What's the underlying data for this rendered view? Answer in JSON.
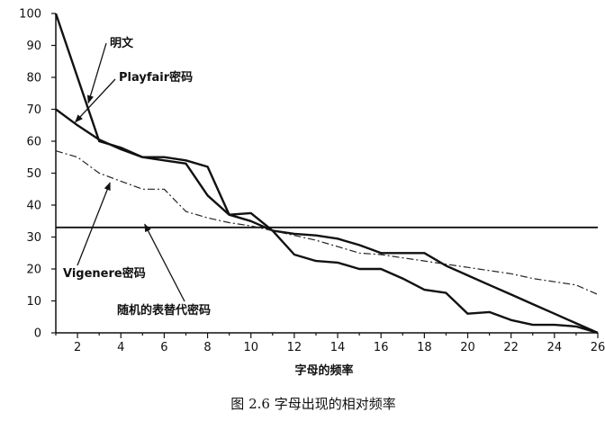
{
  "chart_data": {
    "type": "line",
    "title": "",
    "caption": "图 2.6   字母出现的相对频率",
    "xlabel": "字母的频率",
    "ylabel": "",
    "xlim": [
      1,
      26
    ],
    "ylim": [
      0,
      100
    ],
    "x_ticks": [
      2,
      4,
      6,
      8,
      10,
      12,
      14,
      16,
      18,
      20,
      22,
      24,
      26
    ],
    "y_ticks": [
      0,
      10,
      20,
      30,
      40,
      50,
      60,
      70,
      80,
      90,
      100
    ],
    "grid": false,
    "legend": "none",
    "series": [
      {
        "name": "明文",
        "style": "solid-thick",
        "color": "#111111",
        "x": [
          1,
          2,
          3,
          4,
          5,
          6,
          7,
          8,
          9,
          10,
          11,
          12,
          13,
          14,
          15,
          16,
          17,
          18,
          19,
          20,
          21,
          22,
          23,
          24,
          25,
          26
        ],
        "y": [
          100,
          80,
          60,
          58,
          55,
          55,
          54,
          52,
          37,
          37.5,
          32,
          24.5,
          22.5,
          22,
          20,
          20,
          17,
          13.5,
          12.5,
          6,
          6.5,
          4,
          2.5,
          2.5,
          2,
          0
        ]
      },
      {
        "name": "Playfair密码",
        "style": "solid-thick",
        "color": "#111111",
        "x": [
          1,
          2,
          3,
          4,
          5,
          6,
          7,
          8,
          9,
          10,
          11,
          12,
          13,
          14,
          15,
          16,
          17,
          18,
          19,
          20,
          21,
          22,
          23,
          24,
          25,
          26
        ],
        "y": [
          70,
          65,
          60.5,
          57.5,
          55,
          54,
          53,
          43,
          37,
          35,
          32,
          31,
          30.5,
          29.5,
          27.5,
          25,
          25,
          25,
          21,
          18,
          15,
          12,
          9,
          6,
          3,
          0
        ]
      },
      {
        "name": "Vigenere密码",
        "style": "dash-dot",
        "color": "#222222",
        "x": [
          1,
          2,
          3,
          4,
          5,
          6,
          7,
          8,
          9,
          10,
          11,
          12,
          13,
          14,
          15,
          16,
          17,
          18,
          19,
          20,
          21,
          22,
          23,
          24,
          25,
          26
        ],
        "y": [
          57,
          55,
          50,
          47.5,
          45,
          45,
          38,
          36,
          34.5,
          33.5,
          32,
          30.5,
          29,
          27,
          25,
          24.5,
          23.5,
          22.5,
          21.5,
          20.5,
          19.5,
          18.5,
          17,
          16,
          15,
          12
        ]
      },
      {
        "name": "随机的表替代密码",
        "style": "solid",
        "color": "#111111",
        "x": [
          1,
          26
        ],
        "y": [
          33,
          33
        ]
      }
    ],
    "annotations": [
      {
        "text": "明文",
        "series": 0
      },
      {
        "text": "Playfair密码",
        "series": 1
      },
      {
        "text": "Vigenere密码",
        "series": 2
      },
      {
        "text": "随机的表替代密码",
        "series": 3
      }
    ]
  }
}
